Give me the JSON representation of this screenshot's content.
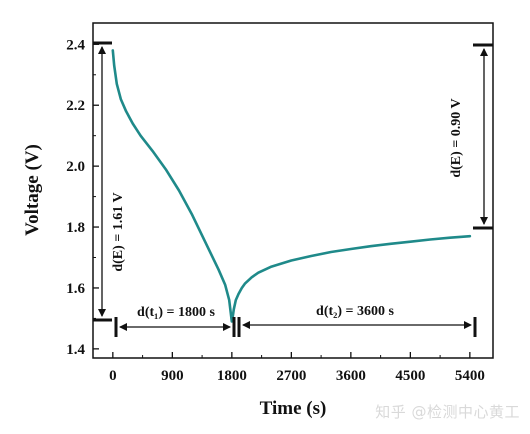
{
  "chart_data": {
    "type": "line",
    "xlabel": "Time (s)",
    "ylabel": "Voltage (V)",
    "xlim": [
      -300,
      5750
    ],
    "ylim": [
      1.37,
      2.47
    ],
    "x_ticks": [
      0,
      900,
      1800,
      2700,
      3600,
      4500,
      5400
    ],
    "x_tick_labels": [
      "0",
      "900",
      "1800",
      "2700",
      "3600",
      "4500",
      "5400"
    ],
    "y_ticks": [
      1.4,
      1.6,
      1.8,
      2.0,
      2.2,
      2.4
    ],
    "y_tick_labels": [
      "1.4",
      "1.6",
      "1.8",
      "2.0",
      "2.2",
      "2.4"
    ],
    "grid": false,
    "line_color": "#1f8a8a",
    "series": [
      {
        "x": [
          0,
          20,
          60,
          120,
          200,
          300,
          420,
          600,
          800,
          1000,
          1200,
          1400,
          1600,
          1700,
          1760,
          1800,
          1810,
          1830,
          1860,
          1900,
          1950,
          2000,
          2100,
          2200,
          2400,
          2700,
          3000,
          3300,
          3600,
          3900,
          4200,
          4500,
          4800,
          5100,
          5400
        ],
        "y": [
          2.38,
          2.33,
          2.27,
          2.22,
          2.18,
          2.14,
          2.1,
          2.05,
          1.99,
          1.92,
          1.84,
          1.75,
          1.66,
          1.61,
          1.56,
          1.49,
          1.5,
          1.53,
          1.56,
          1.58,
          1.6,
          1.615,
          1.635,
          1.65,
          1.67,
          1.69,
          1.705,
          1.718,
          1.728,
          1.737,
          1.745,
          1.752,
          1.759,
          1.765,
          1.77
        ]
      }
    ],
    "annotations": {
      "dE_left": "d(E) = 1.61 V",
      "dE_right": "d(E) = 0.90 V",
      "dt1": "d(t₁) = 1800 s",
      "dt2": "d(t₂) = 3600 s"
    }
  },
  "watermark": "知乎 @检测中心黄工"
}
